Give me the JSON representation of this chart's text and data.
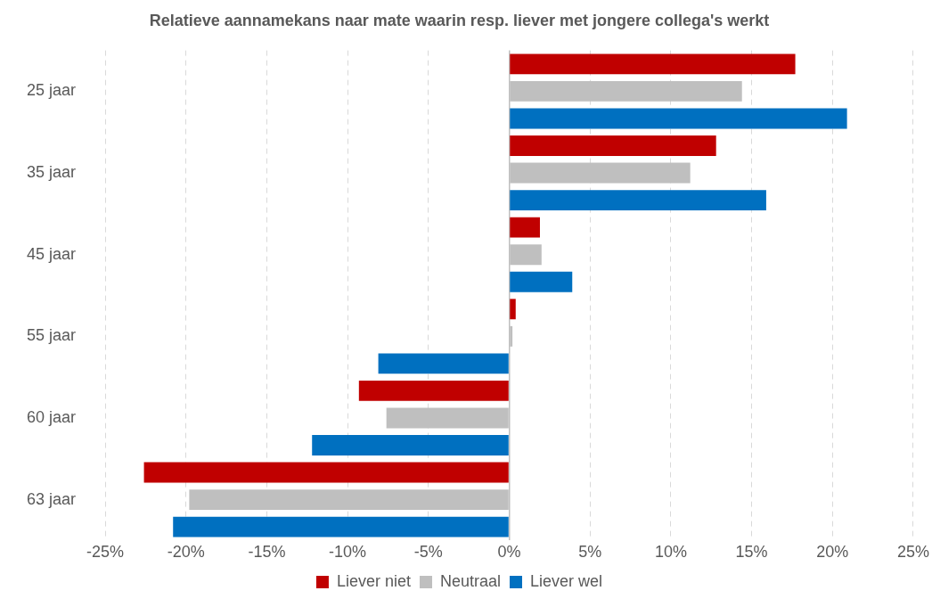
{
  "chart_data": {
    "type": "bar",
    "orientation": "horizontal",
    "title": "Relatieve aannamekans naar mate waarin resp. liever met jongere collega's werkt",
    "categories": [
      "25 jaar",
      "35 jaar",
      "45 jaar",
      "55 jaar",
      "60 jaar",
      "63 jaar"
    ],
    "series": [
      {
        "name": "Liever niet",
        "color": "#c00000",
        "values": [
          17.7,
          12.8,
          1.9,
          0.4,
          -9.3,
          -22.6
        ]
      },
      {
        "name": "Neutraal",
        "color": "#bfbfbf",
        "values": [
          14.4,
          11.2,
          2.0,
          0.2,
          -7.6,
          -19.8
        ]
      },
      {
        "name": "Liever wel",
        "color": "#0070c0",
        "values": [
          20.9,
          15.9,
          3.9,
          -8.1,
          -12.2,
          -20.8
        ]
      }
    ],
    "xlim": [
      -25,
      25
    ],
    "xticks": [
      {
        "value": -25,
        "label": "-25%"
      },
      {
        "value": -20,
        "label": "-20%"
      },
      {
        "value": -15,
        "label": "-15%"
      },
      {
        "value": -10,
        "label": "-10%"
      },
      {
        "value": -5,
        "label": "-5%"
      },
      {
        "value": 0,
        "label": "0%"
      },
      {
        "value": 5,
        "label": "5%"
      },
      {
        "value": 10,
        "label": "10%"
      },
      {
        "value": 15,
        "label": "15%"
      },
      {
        "value": 20,
        "label": "20%"
      },
      {
        "value": 25,
        "label": "25%"
      }
    ],
    "grid": "x",
    "legend": "bottom"
  }
}
